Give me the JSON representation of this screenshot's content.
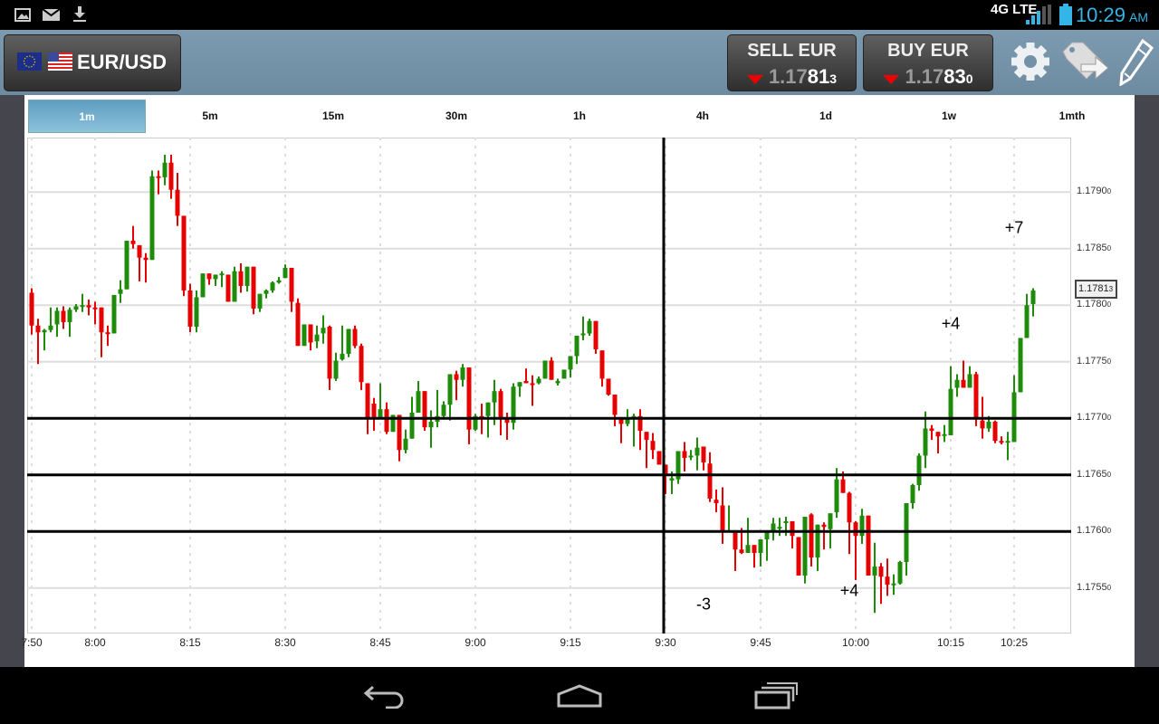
{
  "status_bar": {
    "time": "10:29",
    "ampm": "AM",
    "network": "4G LTE",
    "icons": [
      "gallery-icon",
      "gmail-icon",
      "download-icon",
      "signal-icon",
      "battery-icon"
    ]
  },
  "header": {
    "pair": "EUR/USD",
    "sell": {
      "label": "SELL EUR",
      "price_prefix": "1.17",
      "price_big": "81",
      "price_pipette": "3",
      "direction": "down"
    },
    "buy": {
      "label": "BUY EUR",
      "price_prefix": "1.17",
      "price_big": "83",
      "price_pipette": "0",
      "direction": "down"
    },
    "icons": [
      "gear-icon",
      "tag-arrow-icon",
      "pencil-icon"
    ]
  },
  "timeframes": [
    {
      "label": "1m",
      "selected": true
    },
    {
      "label": "5m"
    },
    {
      "label": "15m"
    },
    {
      "label": "30m"
    },
    {
      "label": "1h"
    },
    {
      "label": "4h"
    },
    {
      "label": "1d"
    },
    {
      "label": "1w"
    },
    {
      "label": "1mth"
    }
  ],
  "colors": {
    "up": "#1e8c0a",
    "down": "#e60000",
    "accent": "#33b5e5",
    "header": "#7596ab"
  },
  "chart_data": {
    "type": "candlestick",
    "interval": "1m",
    "x_start": "7:50",
    "x_ticks": [
      "7:50",
      "8:00",
      "8:15",
      "8:30",
      "8:45",
      "9:00",
      "9:15",
      "9:30",
      "9:45",
      "10:00",
      "10:15",
      "10:25"
    ],
    "y_ticks": [
      {
        "value": "1.1790",
        "pipette": "0"
      },
      {
        "value": "1.1785",
        "pipette": "0"
      },
      {
        "value": "1.1780",
        "pipette": "0"
      },
      {
        "value": "1.1775",
        "pipette": "0"
      },
      {
        "value": "1.1770",
        "pipette": "0"
      },
      {
        "value": "1.1765",
        "pipette": "0"
      },
      {
        "value": "1.1760",
        "pipette": "0"
      },
      {
        "value": "1.1755",
        "pipette": "0"
      }
    ],
    "ylim": [
      1.17515,
      1.17943
    ],
    "grid": true,
    "current_price": {
      "value": "1.1781",
      "pipette": "3"
    },
    "horizontal_lines": [
      1.177,
      1.1765,
      1.176
    ],
    "crosshair_time": "9:30",
    "annotations": [
      {
        "text": "-3",
        "time": "9:36",
        "price": 1.17535
      },
      {
        "text": "+4",
        "time": "9:59",
        "price": 1.17547
      },
      {
        "text": "+4",
        "time": "10:15",
        "price": 1.17783
      },
      {
        "text": "+7",
        "time": "10:25",
        "price": 1.17868
      }
    ],
    "ohlc": [
      [
        1.17811,
        1.17815,
        1.17774,
        1.17782
      ],
      [
        1.17782,
        1.17788,
        1.17748,
        1.17776
      ],
      [
        1.17776,
        1.17779,
        1.1776,
        1.17778
      ],
      [
        1.17778,
        1.17798,
        1.17776,
        1.17782
      ],
      [
        1.17783,
        1.17798,
        1.17772,
        1.17795
      ],
      [
        1.17795,
        1.17799,
        1.17779,
        1.17785
      ],
      [
        1.17785,
        1.17798,
        1.17772,
        1.17796
      ],
      [
        1.17796,
        1.17801,
        1.17794,
        1.17799
      ],
      [
        1.17799,
        1.1781,
        1.17794,
        1.178
      ],
      [
        1.178,
        1.17805,
        1.17791,
        1.17798
      ],
      [
        1.17798,
        1.17803,
        1.17783,
        1.17797
      ],
      [
        1.17798,
        1.17798,
        1.17754,
        1.17776
      ],
      [
        1.17776,
        1.17782,
        1.17764,
        1.17775
      ],
      [
        1.17775,
        1.17809,
        1.17775,
        1.17809
      ],
      [
        1.1781,
        1.17822,
        1.17802,
        1.17814
      ],
      [
        1.17814,
        1.17857,
        1.17814,
        1.17857
      ],
      [
        1.17857,
        1.1787,
        1.1785,
        1.17854
      ],
      [
        1.17853,
        1.17853,
        1.17821,
        1.17842
      ],
      [
        1.17842,
        1.17846,
        1.1782,
        1.1784
      ],
      [
        1.1784,
        1.17919,
        1.1784,
        1.17914
      ],
      [
        1.17914,
        1.17919,
        1.17898,
        1.17913
      ],
      [
        1.17913,
        1.17933,
        1.17906,
        1.17926
      ],
      [
        1.17926,
        1.17933,
        1.17894,
        1.17902
      ],
      [
        1.17902,
        1.17917,
        1.1787,
        1.17879
      ],
      [
        1.17879,
        1.17879,
        1.17808,
        1.17813
      ],
      [
        1.17813,
        1.17819,
        1.17776,
        1.17781
      ],
      [
        1.17781,
        1.17813,
        1.17776,
        1.17807
      ],
      [
        1.17807,
        1.17828,
        1.17807,
        1.17828
      ],
      [
        1.17828,
        1.17828,
        1.17818,
        1.17823
      ],
      [
        1.17823,
        1.17827,
        1.17817,
        1.17827
      ],
      [
        1.17827,
        1.1783,
        1.17816,
        1.17828
      ],
      [
        1.17827,
        1.17827,
        1.17803,
        1.17803
      ],
      [
        1.17803,
        1.17834,
        1.17803,
        1.1783
      ],
      [
        1.1783,
        1.17837,
        1.17811,
        1.17817
      ],
      [
        1.17817,
        1.17834,
        1.17812,
        1.17834
      ],
      [
        1.17834,
        1.17834,
        1.17792,
        1.17797
      ],
      [
        1.17797,
        1.1781,
        1.17794,
        1.1781
      ],
      [
        1.1781,
        1.17814,
        1.17806,
        1.17813
      ],
      [
        1.17813,
        1.17821,
        1.17811,
        1.1782
      ],
      [
        1.1782,
        1.17825,
        1.17819,
        1.17822
      ],
      [
        1.17824,
        1.17836,
        1.17824,
        1.17833
      ],
      [
        1.17833,
        1.17833,
        1.17794,
        1.17803
      ],
      [
        1.17802,
        1.17806,
        1.17764,
        1.17764
      ],
      [
        1.17764,
        1.17783,
        1.17764,
        1.17783
      ],
      [
        1.17783,
        1.17783,
        1.1776,
        1.17767
      ],
      [
        1.17768,
        1.17782,
        1.17762,
        1.17774
      ],
      [
        1.17775,
        1.17791,
        1.17766,
        1.1778
      ],
      [
        1.17781,
        1.17782,
        1.17725,
        1.17735
      ],
      [
        1.17735,
        1.17758,
        1.17733,
        1.17751
      ],
      [
        1.17752,
        1.17782,
        1.17751,
        1.17757
      ],
      [
        1.17757,
        1.17779,
        1.17754,
        1.17779
      ],
      [
        1.17779,
        1.17782,
        1.17762,
        1.17764
      ],
      [
        1.17764,
        1.17766,
        1.17725,
        1.17732
      ],
      [
        1.17731,
        1.17731,
        1.17686,
        1.177
      ],
      [
        1.17713,
        1.17718,
        1.17689,
        1.177
      ],
      [
        1.177,
        1.17731,
        1.17699,
        1.17708
      ],
      [
        1.17708,
        1.17714,
        1.17686,
        1.17688
      ],
      [
        1.17688,
        1.17703,
        1.17688,
        1.17703
      ],
      [
        1.17703,
        1.17703,
        1.17662,
        1.17672
      ],
      [
        1.17672,
        1.1769,
        1.17669,
        1.17682
      ],
      [
        1.17682,
        1.17719,
        1.17682,
        1.17705
      ],
      [
        1.17705,
        1.17733,
        1.17705,
        1.17724
      ],
      [
        1.17724,
        1.17724,
        1.17689,
        1.17692
      ],
      [
        1.17692,
        1.17707,
        1.17674,
        1.17697
      ],
      [
        1.17697,
        1.17725,
        1.17692,
        1.17702
      ],
      [
        1.17702,
        1.17715,
        1.17699,
        1.17712
      ],
      [
        1.17712,
        1.17739,
        1.17698,
        1.17739
      ],
      [
        1.17739,
        1.17742,
        1.17716,
        1.17734
      ],
      [
        1.17734,
        1.17748,
        1.17728,
        1.17745
      ],
      [
        1.17745,
        1.17745,
        1.17677,
        1.1769
      ],
      [
        1.1769,
        1.17704,
        1.17689,
        1.17702
      ],
      [
        1.17702,
        1.17713,
        1.17686,
        1.17701
      ],
      [
        1.17702,
        1.17714,
        1.17683,
        1.17714
      ],
      [
        1.17714,
        1.17734,
        1.17694,
        1.17724
      ],
      [
        1.17724,
        1.17726,
        1.17685,
        1.177
      ],
      [
        1.17699,
        1.17705,
        1.17681,
        1.17696
      ],
      [
        1.17696,
        1.17731,
        1.1769,
        1.17728
      ],
      [
        1.17728,
        1.17732,
        1.17719,
        1.17732
      ],
      [
        1.17733,
        1.17744,
        1.17731,
        1.17731
      ],
      [
        1.17731,
        1.17738,
        1.17711,
        1.1773
      ],
      [
        1.17731,
        1.17737,
        1.1773,
        1.17735
      ],
      [
        1.17735,
        1.17751,
        1.17735,
        1.17751
      ],
      [
        1.17751,
        1.17754,
        1.17734,
        1.17734
      ],
      [
        1.17731,
        1.17735,
        1.17729,
        1.17733
      ],
      [
        1.17735,
        1.17743,
        1.17735,
        1.17743
      ],
      [
        1.17743,
        1.17755,
        1.17736,
        1.17755
      ],
      [
        1.17755,
        1.17773,
        1.17748,
        1.17773
      ],
      [
        1.17774,
        1.1779,
        1.17769,
        1.17775
      ],
      [
        1.17775,
        1.17788,
        1.17773,
        1.17786
      ],
      [
        1.17786,
        1.17786,
        1.17757,
        1.17761
      ],
      [
        1.1776,
        1.1776,
        1.17728,
        1.17735
      ],
      [
        1.17735,
        1.17735,
        1.1772,
        1.17721
      ],
      [
        1.17721,
        1.17721,
        1.17693,
        1.17703
      ],
      [
        1.17701,
        1.17701,
        1.17678,
        1.17695
      ],
      [
        1.17695,
        1.17708,
        1.17693,
        1.177
      ],
      [
        1.177,
        1.17704,
        1.17675,
        1.17702
      ],
      [
        1.17702,
        1.17708,
        1.17672,
        1.17689
      ],
      [
        1.17688,
        1.17688,
        1.17656,
        1.17681
      ],
      [
        1.1768,
        1.17687,
        1.17664,
        1.17672
      ],
      [
        1.17671,
        1.17671,
        1.17659,
        1.17659
      ],
      [
        1.17659,
        1.17659,
        1.17633,
        1.1765
      ],
      [
        1.17645,
        1.17653,
        1.17633,
        1.17647
      ],
      [
        1.17646,
        1.17671,
        1.17642,
        1.17671
      ],
      [
        1.17671,
        1.17679,
        1.17653,
        1.17665
      ],
      [
        1.17666,
        1.17672,
        1.17663,
        1.17667
      ],
      [
        1.17667,
        1.17683,
        1.17654,
        1.17674
      ],
      [
        1.17675,
        1.17675,
        1.17654,
        1.17661
      ],
      [
        1.1766,
        1.1767,
        1.17626,
        1.17629
      ],
      [
        1.17628,
        1.17637,
        1.17617,
        1.17625
      ],
      [
        1.17623,
        1.17639,
        1.17589,
        1.17601
      ],
      [
        1.176,
        1.17623,
        1.176,
        1.17601
      ],
      [
        1.17601,
        1.17601,
        1.17565,
        1.17584
      ],
      [
        1.17584,
        1.17603,
        1.1758,
        1.17581
      ],
      [
        1.17581,
        1.17612,
        1.17581,
        1.17588
      ],
      [
        1.17588,
        1.17588,
        1.17568,
        1.17581
      ],
      [
        1.17581,
        1.17593,
        1.17569,
        1.17593
      ],
      [
        1.17593,
        1.176,
        1.17574,
        1.17599
      ],
      [
        1.17599,
        1.17612,
        1.17592,
        1.17607
      ],
      [
        1.17603,
        1.17612,
        1.17596,
        1.17604
      ],
      [
        1.17608,
        1.17613,
        1.17596,
        1.17609
      ],
      [
        1.17609,
        1.17609,
        1.17585,
        1.17596
      ],
      [
        1.17595,
        1.17595,
        1.17561,
        1.17561
      ],
      [
        1.17561,
        1.17613,
        1.17554,
        1.17613
      ],
      [
        1.17615,
        1.17616,
        1.17569,
        1.17577
      ],
      [
        1.17577,
        1.17606,
        1.17565,
        1.17606
      ],
      [
        1.17606,
        1.17608,
        1.17584,
        1.17604
      ],
      [
        1.17602,
        1.17616,
        1.17585,
        1.17616
      ],
      [
        1.17617,
        1.17656,
        1.17612,
        1.17646
      ],
      [
        1.17646,
        1.17653,
        1.17634,
        1.17634
      ],
      [
        1.17634,
        1.17635,
        1.1758,
        1.17608
      ],
      [
        1.17608,
        1.17609,
        1.17557,
        1.17596
      ],
      [
        1.17596,
        1.1762,
        1.17589,
        1.17614
      ],
      [
        1.17614,
        1.17614,
        1.17561,
        1.17561
      ],
      [
        1.17561,
        1.1759,
        1.17528,
        1.17569
      ],
      [
        1.17569,
        1.17572,
        1.17536,
        1.1756
      ],
      [
        1.1756,
        1.17576,
        1.17543,
        1.17553
      ],
      [
        1.17553,
        1.17562,
        1.17544,
        1.17554
      ],
      [
        1.17554,
        1.17574,
        1.17553,
        1.17573
      ],
      [
        1.17573,
        1.17625,
        1.17561,
        1.17625
      ],
      [
        1.17625,
        1.17642,
        1.1762,
        1.17641
      ],
      [
        1.17641,
        1.17669,
        1.17636,
        1.17667
      ],
      [
        1.17667,
        1.17706,
        1.17656,
        1.17691
      ],
      [
        1.17691,
        1.17694,
        1.17681,
        1.17689
      ],
      [
        1.17688,
        1.17688,
        1.17669,
        1.17684
      ],
      [
        1.17685,
        1.17694,
        1.17679,
        1.17686
      ],
      [
        1.17685,
        1.17746,
        1.17685,
        1.17726
      ],
      [
        1.17727,
        1.17739,
        1.17719,
        1.17734
      ],
      [
        1.17734,
        1.17751,
        1.17727,
        1.17727
      ],
      [
        1.17727,
        1.17746,
        1.17727,
        1.17739
      ],
      [
        1.17739,
        1.17741,
        1.17693,
        1.177
      ],
      [
        1.17698,
        1.17719,
        1.17682,
        1.17691
      ],
      [
        1.17691,
        1.17702,
        1.17688,
        1.17697
      ],
      [
        1.17697,
        1.17698,
        1.17678,
        1.1768
      ],
      [
        1.1768,
        1.17684,
        1.17677,
        1.17679
      ],
      [
        1.17679,
        1.17688,
        1.17663,
        1.1768
      ],
      [
        1.17679,
        1.17738,
        1.17679,
        1.17723
      ],
      [
        1.17723,
        1.17771,
        1.17723,
        1.17771
      ],
      [
        1.17771,
        1.1781,
        1.17771,
        1.178
      ],
      [
        1.17801,
        1.17815,
        1.1779,
        1.17813
      ]
    ]
  },
  "nav_bar": {
    "icons": [
      "back-icon",
      "home-icon",
      "recent-apps-icon"
    ]
  }
}
